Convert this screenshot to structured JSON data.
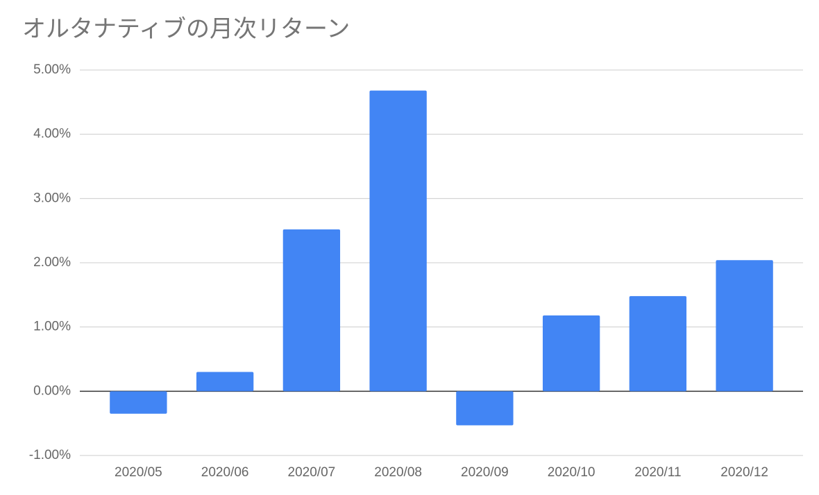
{
  "chart_data": {
    "type": "bar",
    "title": "オルタナティブの月次リターン",
    "categories": [
      "2020/05",
      "2020/06",
      "2020/07",
      "2020/08",
      "2020/09",
      "2020/10",
      "2020/11",
      "2020/12"
    ],
    "values": [
      -0.35,
      0.3,
      2.52,
      4.68,
      -0.53,
      1.18,
      1.48,
      2.04
    ],
    "color": "#4285f4",
    "ylim": [
      -1,
      5
    ],
    "yticks": [
      {
        "value": -1,
        "label": "-1.00%"
      },
      {
        "value": 0,
        "label": "0.00%"
      },
      {
        "value": 1,
        "label": "1.00%"
      },
      {
        "value": 2,
        "label": "2.00%"
      },
      {
        "value": 3,
        "label": "3.00%"
      },
      {
        "value": 4,
        "label": "4.00%"
      },
      {
        "value": 5,
        "label": "5.00%"
      }
    ],
    "grid": true
  }
}
